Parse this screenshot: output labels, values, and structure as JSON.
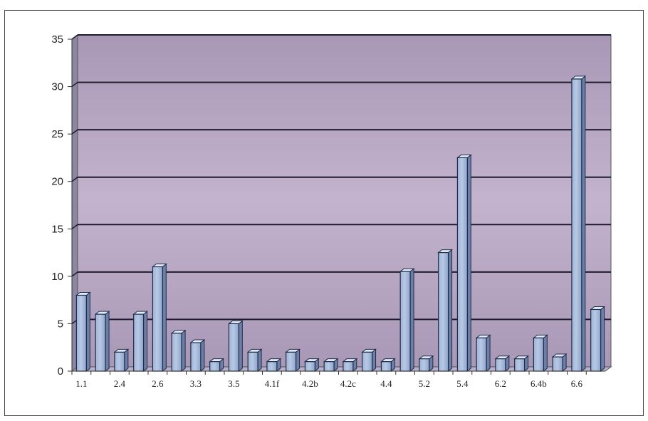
{
  "chart_data": {
    "type": "bar",
    "style": "3d-column",
    "categories": [
      "1.1",
      "",
      "2.4",
      "",
      "2.6",
      "",
      "3.3",
      "",
      "3.5",
      "",
      "4.1f",
      "",
      "4.2b",
      "",
      "4.2c",
      "",
      "4.4",
      "",
      "5.2",
      "",
      "5.4",
      "",
      "6.2",
      "",
      "6.4b",
      "",
      "6.6",
      ""
    ],
    "values": [
      8,
      6,
      2,
      6,
      11,
      4,
      3,
      1,
      5,
      2,
      1,
      2,
      1,
      1,
      1,
      2,
      1,
      10.5,
      1.3,
      12.5,
      22.5,
      3.5,
      1.3,
      1.3,
      3.5,
      1.5,
      30.8,
      6.5
    ],
    "yticks": [
      "0",
      "5",
      "10",
      "15",
      "20",
      "25",
      "30",
      "35"
    ],
    "ylim": [
      0,
      35
    ],
    "grid": true,
    "colors": {
      "plot_background": "#c3b3cd",
      "plot_background_dark": "#a898b6",
      "wall_side": "#8c86a3",
      "floor": "#b8b2c8",
      "bar_front": "#b7c9e4",
      "bar_side": "#6d7fa6",
      "bar_top": "#e2ebf7",
      "bar_edge": "#1f2d4a",
      "gridline": "#1c1c2c"
    }
  }
}
